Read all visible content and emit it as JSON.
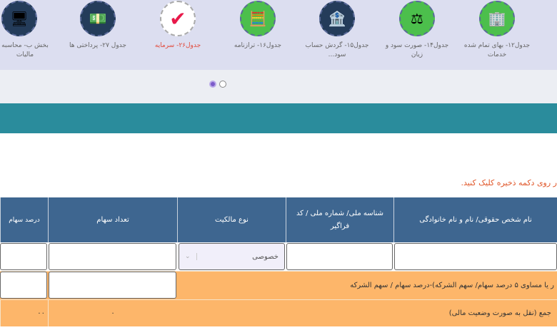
{
  "carousel": {
    "items": [
      {
        "label": "بخش ب- محاسبه مالیات",
        "icon": "tax-computer-icon",
        "bg": "#243c5a"
      },
      {
        "label": "جدول ۲۷- پرداختی ها",
        "icon": "money-payment-icon",
        "bg": "#243c5a"
      },
      {
        "label": "جدول۲۶- سرمایه",
        "icon": "checkmark-icon",
        "bg": "#ffffff",
        "active": true
      },
      {
        "label": "جدول۱۶- ترازنامه",
        "icon": "calculator-balance-icon",
        "bg": "#4cbf4c"
      },
      {
        "label": "جدول۱۵- گردش حساب سود...",
        "icon": "bank-network-icon",
        "bg": "#243c5a"
      },
      {
        "label": "جدول۱۴- صورت سود و زیان",
        "icon": "scale-icon",
        "bg": "#4cbf4c"
      },
      {
        "label": "جدول۱۲- بهای تمام شده خدمات",
        "icon": "buildings-hand-icon",
        "bg": "#4cbf4c"
      }
    ],
    "active_color": "#e24a3b"
  },
  "note": "ر روی دکمه ذخیره کلیک کنید.",
  "table": {
    "headers": [
      "درصد سهام",
      "تعداد سهام",
      "نوع مالکیت",
      "شناسه ملی/ شماره ملی / کد فراگیر",
      "نام شخص حقوقی/ نام و نام خانوادگی"
    ],
    "ownership_value": "خصوصی",
    "row_label": "ر یا مساوی ۵ درصد سهام/ سهم الشرکه)-درصد سهام / سهم الشرکه",
    "total_label": "جمع (نقل به صورت وضعیت مالی)",
    "total_shares": "۰",
    "total_percent": "۰۰",
    "header_color": "#3e6690",
    "row_color": "#fdb66a"
  }
}
